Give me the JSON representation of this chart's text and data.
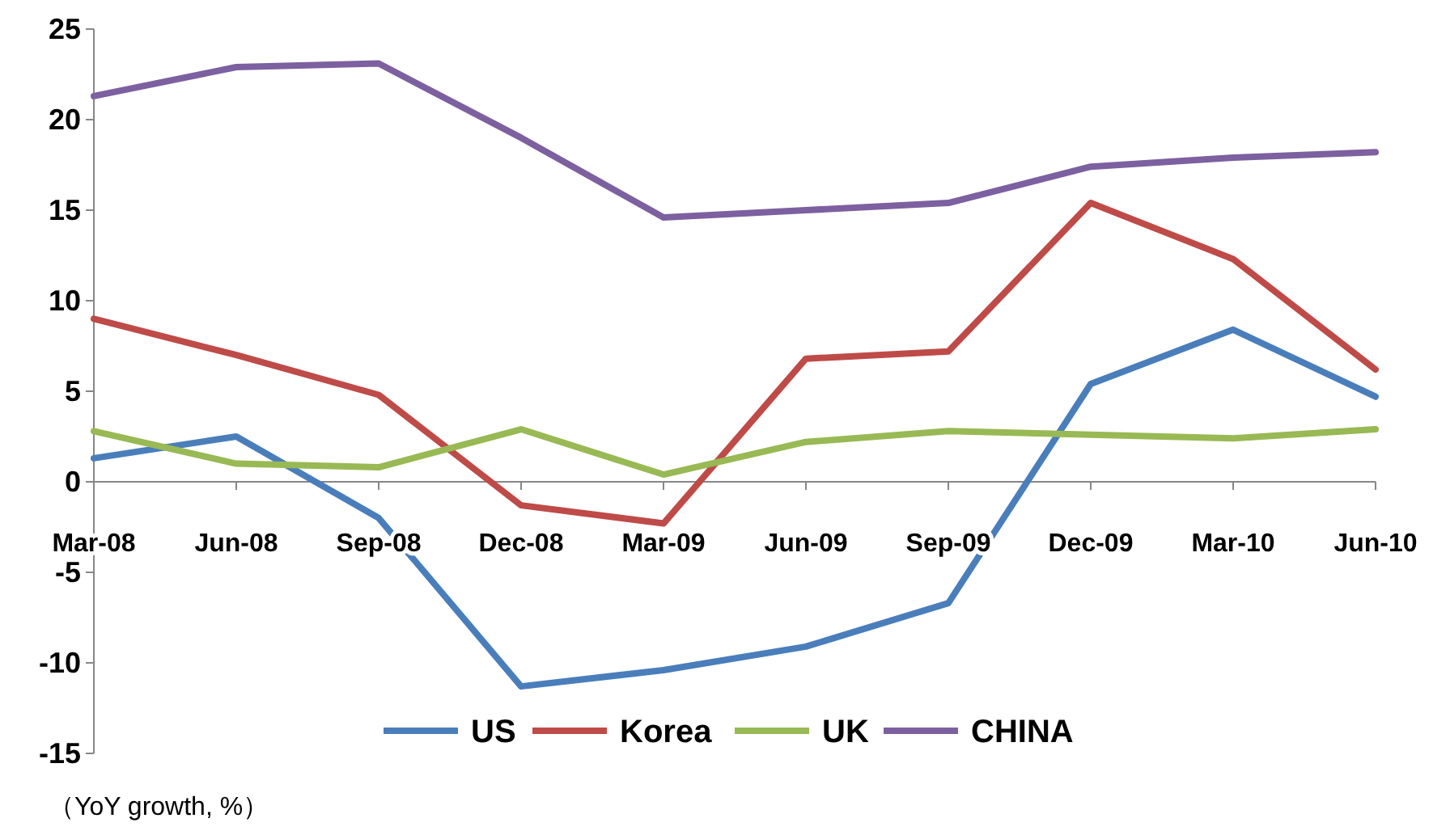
{
  "chart_data": {
    "type": "line",
    "categories": [
      "Mar-08",
      "Jun-08",
      "Sep-08",
      "Dec-08",
      "Mar-09",
      "Jun-09",
      "Sep-09",
      "Dec-09",
      "Mar-10",
      "Jun-10"
    ],
    "series": [
      {
        "name": "US",
        "color": "#4a7ebb",
        "values": [
          1.3,
          2.5,
          -2,
          -11.3,
          -10.4,
          -9.1,
          -6.7,
          5.4,
          8.4,
          4.7
        ]
      },
      {
        "name": "Korea",
        "color": "#be4b48",
        "values": [
          9.0,
          7.0,
          4.8,
          -1.3,
          -2.3,
          6.8,
          7.2,
          15.4,
          12.3,
          6.2
        ]
      },
      {
        "name": "UK",
        "color": "#98b954",
        "values": [
          2.8,
          1.0,
          0.8,
          2.9,
          0.4,
          2.2,
          2.8,
          2.6,
          2.4,
          2.9
        ]
      },
      {
        "name": "CHINA",
        "color": "#7d60a0",
        "values": [
          21.3,
          22.9,
          23.1,
          19.0,
          14.6,
          15.0,
          15.4,
          17.4,
          17.9,
          18.2
        ]
      }
    ],
    "ylim": [
      -15,
      25
    ],
    "yticks": [
      -15,
      -10,
      -5,
      0,
      5,
      10,
      15,
      20,
      25
    ],
    "legend": "bottom",
    "grid": false,
    "marker": "none",
    "line_style": "solid",
    "annotations": [
      "（YoY growth, %）"
    ]
  }
}
